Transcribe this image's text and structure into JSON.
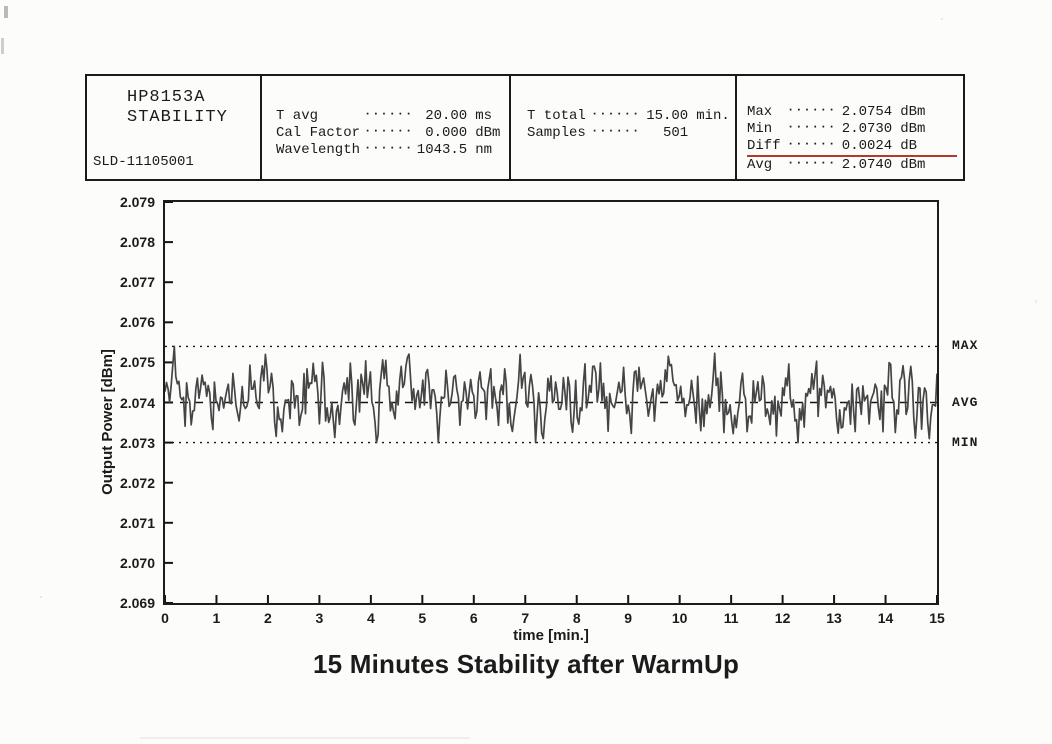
{
  "header": {
    "instrument": {
      "model": "HP8153A",
      "mode": "STABILITY",
      "serial": "SLD-11105001"
    },
    "dots": "······",
    "measurement_params": [
      {
        "label": "T avg",
        "value": "20.00",
        "unit": "ms"
      },
      {
        "label": "Cal Factor",
        "value": "0.000",
        "unit": "dBm"
      },
      {
        "label": "Wavelength",
        "value": "1043.5",
        "unit": "nm"
      }
    ],
    "acquisition_params": [
      {
        "label": "T total",
        "value": "15.00",
        "unit": "min."
      },
      {
        "label": "Samples",
        "value": "501",
        "unit": ""
      }
    ],
    "statistics": [
      {
        "label": "Max",
        "value": "2.0754",
        "unit": "dBm",
        "highlight": false
      },
      {
        "label": "Min",
        "value": "2.0730",
        "unit": "dBm",
        "highlight": false
      },
      {
        "label": "Diff",
        "value": "0.0024",
        "unit": "dB",
        "highlight": true
      },
      {
        "label": "Avg",
        "value": "2.0740",
        "unit": "dBm",
        "highlight": false
      }
    ],
    "highlight_color": "#b03a2e"
  },
  "chart": {
    "caption": "15 Minutes Stability after WarmUp"
  },
  "chart_data": {
    "type": "line",
    "title": "15 Minutes Stability after WarmUp",
    "xlabel": "time [min.]",
    "ylabel": "Output Power [dBm]",
    "xlim": [
      0,
      15
    ],
    "ylim": [
      2.069,
      2.079
    ],
    "xticks": [
      0,
      1,
      2,
      3,
      4,
      5,
      6,
      7,
      8,
      9,
      10,
      11,
      12,
      13,
      14,
      15
    ],
    "yticks": [
      2.069,
      2.07,
      2.071,
      2.072,
      2.073,
      2.074,
      2.075,
      2.076,
      2.077,
      2.078,
      2.079
    ],
    "grid": false,
    "legend": "none",
    "line_color": "#454545",
    "samples": 501,
    "stats": {
      "max": 2.0754,
      "min": 2.073,
      "avg": 2.074,
      "diff_db": 0.0024
    },
    "ref_lines": [
      {
        "label": "MAX",
        "y": 2.0754,
        "style": "dotted"
      },
      {
        "label": "AVG",
        "y": 2.074,
        "style": "dashed"
      },
      {
        "label": "MIN",
        "y": 2.073,
        "style": "dotted"
      }
    ],
    "generator": {
      "seed": 20754,
      "persist": 0.4,
      "jitter": 0.001,
      "avg": 2.0741,
      "clamp_min": 2.073,
      "clamp_max": 2.0754
    },
    "key_points": [
      {
        "x": 0.02,
        "y": 2.0745
      },
      {
        "x": 0.18,
        "y": 2.0754
      },
      {
        "x": 1.95,
        "y": 2.0752
      },
      {
        "x": 3.05,
        "y": 2.075
      },
      {
        "x": 4.1,
        "y": 2.073
      },
      {
        "x": 5.3,
        "y": 2.073
      },
      {
        "x": 7.2,
        "y": 2.073
      },
      {
        "x": 7.35,
        "y": 2.0731
      },
      {
        "x": 8.3,
        "y": 2.0749
      },
      {
        "x": 12.3,
        "y": 2.073
      },
      {
        "x": 14.5,
        "y": 2.0749
      },
      {
        "x": 14.85,
        "y": 2.0731
      }
    ]
  }
}
